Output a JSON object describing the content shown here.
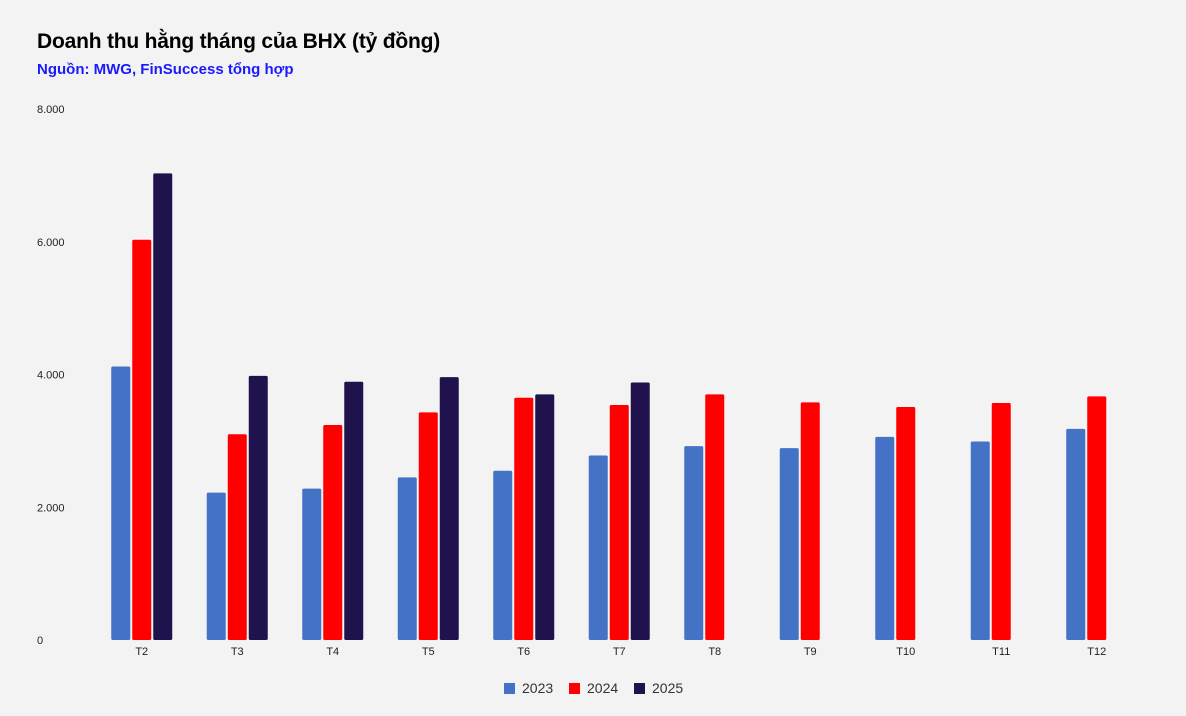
{
  "header": {
    "title": "Doanh thu hằng tháng của BHX (tỷ đồng)",
    "subtitle": "Nguồn: MWG, FinSuccess tổng hợp"
  },
  "colors": {
    "s2023": "#4472c4",
    "s2024": "#ff0000",
    "s2025": "#20124d",
    "background": "#f3f3f3"
  },
  "chart_data": {
    "type": "bar",
    "title": "Doanh thu hằng tháng của BHX (tỷ đồng)",
    "subtitle": "Nguồn: MWG, FinSuccess tổng hợp",
    "categories": [
      "T2",
      "T3",
      "T4",
      "T5",
      "T6",
      "T7",
      "T8",
      "T9",
      "T10",
      "T11",
      "T12"
    ],
    "series": [
      {
        "name": "2023",
        "values": [
          4120,
          2220,
          2280,
          2450,
          2550,
          2780,
          2920,
          2890,
          3060,
          2990,
          3180
        ]
      },
      {
        "name": "2024",
        "values": [
          6030,
          3100,
          3240,
          3430,
          3650,
          3540,
          3700,
          3580,
          3510,
          3570,
          3670
        ]
      },
      {
        "name": "2025",
        "values": [
          7030,
          3980,
          3890,
          3960,
          3700,
          3880,
          null,
          null,
          null,
          null,
          null
        ]
      }
    ],
    "yticks": [
      "0",
      "2.000",
      "4.000",
      "6.000",
      "8.000"
    ],
    "ytick_values": [
      0,
      2000,
      4000,
      6000,
      8000
    ],
    "ylim": [
      0,
      8000
    ],
    "grid": false,
    "legend": {
      "position": "bottom",
      "entries": [
        "2023",
        "2024",
        "2025"
      ]
    }
  }
}
